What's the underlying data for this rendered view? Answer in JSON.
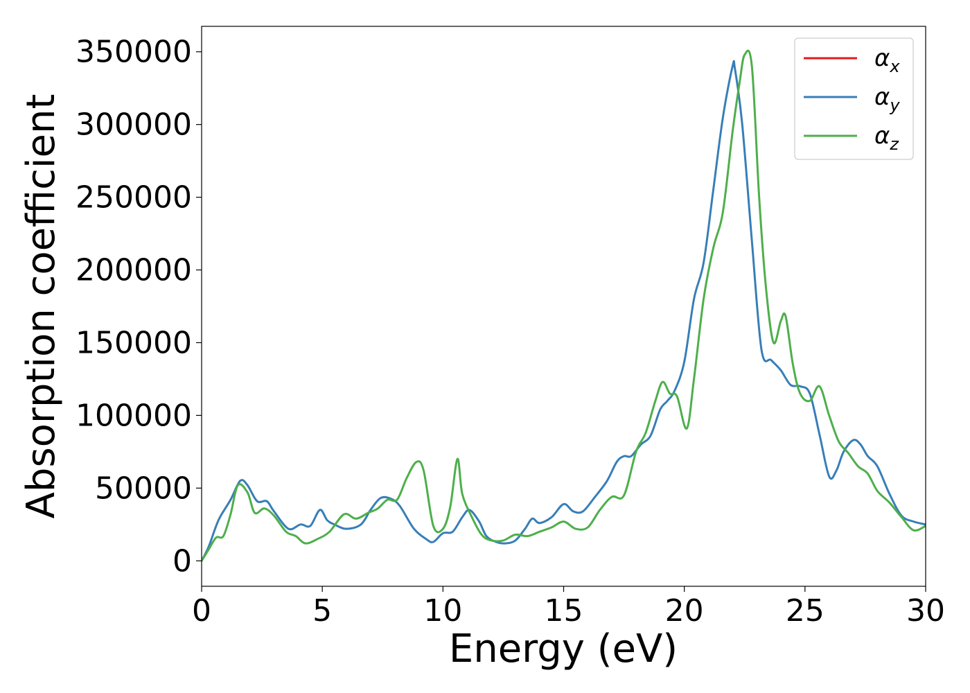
{
  "chart_data": {
    "type": "line",
    "xlabel": "Energy (eV)",
    "ylabel": "Absorption coefficient",
    "xlim": [
      0,
      30
    ],
    "ylim": [
      -17500,
      367500
    ],
    "xticks": [
      "0",
      "5",
      "10",
      "15",
      "20",
      "25",
      "30"
    ],
    "yticks": [
      "0",
      "50000",
      "100000",
      "150000",
      "200000",
      "250000",
      "300000",
      "350000"
    ],
    "grid": false,
    "legend": "top-right",
    "series": [
      {
        "name": "α",
        "sub": "x",
        "color": "#e41a1c",
        "x": [
          0,
          0.3,
          0.7,
          1.2,
          1.6,
          1.9,
          2.3,
          2.7,
          3.0,
          3.6,
          4.1,
          4.5,
          4.9,
          5.2,
          5.5,
          6.0,
          6.6,
          7.0,
          7.4,
          7.8,
          8.2,
          8.8,
          9.3,
          9.6,
          10.0,
          10.4,
          10.8,
          11.1,
          11.5,
          11.8,
          12.2,
          12.6,
          13.0,
          13.4,
          13.7,
          14.0,
          14.5,
          15.0,
          15.4,
          15.8,
          16.3,
          16.8,
          17.2,
          17.5,
          17.8,
          18.2,
          18.6,
          19.0,
          19.3,
          19.6,
          20.0,
          20.4,
          20.8,
          21.2,
          21.6,
          22.0,
          22.1,
          22.4,
          22.8,
          23.2,
          23.6,
          24.0,
          24.4,
          24.8,
          25.2,
          25.6,
          26.0,
          26.3,
          26.6,
          27.0,
          27.3,
          27.6,
          28.0,
          28.5,
          29.0,
          29.5,
          30.0
        ],
        "y": [
          0,
          10000,
          28000,
          42000,
          55000,
          52000,
          41000,
          41000,
          34000,
          22000,
          25000,
          24000,
          35000,
          28000,
          25000,
          22000,
          25000,
          35000,
          43000,
          43000,
          38000,
          22000,
          15000,
          13000,
          19000,
          20000,
          30000,
          35000,
          27000,
          17000,
          13000,
          12000,
          14000,
          22000,
          29000,
          26000,
          30000,
          39000,
          34000,
          34000,
          44000,
          55000,
          68000,
          72000,
          72000,
          80000,
          86000,
          104000,
          110000,
          117000,
          137000,
          180000,
          205000,
          255000,
          305000,
          340000,
          338000,
          300000,
          220000,
          145000,
          138000,
          131000,
          121000,
          120000,
          115000,
          87000,
          58000,
          62000,
          75000,
          83000,
          80000,
          72000,
          65000,
          46000,
          31000,
          27000,
          25000
        ],
        "visible": false
      },
      {
        "name": "α",
        "sub": "y",
        "color": "#377eb8",
        "x": [
          0,
          0.3,
          0.7,
          1.2,
          1.6,
          1.9,
          2.3,
          2.7,
          3.0,
          3.6,
          4.1,
          4.5,
          4.9,
          5.2,
          5.5,
          6.0,
          6.6,
          7.0,
          7.4,
          7.8,
          8.2,
          8.8,
          9.3,
          9.6,
          10.0,
          10.4,
          10.8,
          11.1,
          11.5,
          11.8,
          12.2,
          12.6,
          13.0,
          13.4,
          13.7,
          14.0,
          14.5,
          15.0,
          15.4,
          15.8,
          16.3,
          16.8,
          17.2,
          17.5,
          17.8,
          18.2,
          18.6,
          19.0,
          19.3,
          19.6,
          20.0,
          20.4,
          20.8,
          21.2,
          21.6,
          22.0,
          22.1,
          22.4,
          22.8,
          23.2,
          23.6,
          24.0,
          24.4,
          24.8,
          25.2,
          25.6,
          26.0,
          26.3,
          26.6,
          27.0,
          27.3,
          27.6,
          28.0,
          28.5,
          29.0,
          29.5,
          30.0
        ],
        "y": [
          0,
          10000,
          28000,
          42000,
          55000,
          52000,
          41000,
          41000,
          34000,
          22000,
          25000,
          24000,
          35000,
          28000,
          25000,
          22000,
          25000,
          35000,
          43000,
          43000,
          38000,
          22000,
          15000,
          13000,
          19000,
          20000,
          30000,
          35000,
          27000,
          17000,
          13000,
          12000,
          14000,
          22000,
          29000,
          26000,
          30000,
          39000,
          34000,
          34000,
          44000,
          55000,
          68000,
          72000,
          72000,
          80000,
          86000,
          104000,
          110000,
          117000,
          137000,
          180000,
          205000,
          255000,
          305000,
          340000,
          338000,
          300000,
          220000,
          145000,
          138000,
          131000,
          121000,
          120000,
          115000,
          87000,
          58000,
          62000,
          75000,
          83000,
          80000,
          72000,
          65000,
          46000,
          31000,
          27000,
          25000
        ]
      },
      {
        "name": "α",
        "sub": "z",
        "color": "#4daf4a",
        "x": [
          0,
          0.3,
          0.6,
          0.9,
          1.2,
          1.5,
          1.9,
          2.2,
          2.6,
          3.0,
          3.5,
          3.9,
          4.3,
          4.8,
          5.3,
          5.9,
          6.4,
          6.9,
          7.3,
          7.7,
          8.1,
          8.5,
          8.9,
          9.2,
          9.6,
          10.0,
          10.3,
          10.6,
          10.8,
          11.2,
          11.6,
          12.0,
          12.5,
          13.0,
          13.5,
          14.0,
          14.5,
          15.0,
          15.5,
          16.0,
          16.5,
          17.0,
          17.5,
          18.0,
          18.4,
          18.8,
          19.1,
          19.4,
          19.7,
          20.1,
          20.4,
          20.8,
          21.2,
          21.6,
          22.0,
          22.3,
          22.5,
          22.8,
          23.1,
          23.4,
          23.7,
          24.0,
          24.2,
          24.5,
          24.8,
          25.2,
          25.6,
          26.0,
          26.4,
          26.8,
          27.2,
          27.6,
          28.0,
          28.5,
          29.0,
          29.5,
          30.0
        ],
        "y": [
          0,
          8000,
          16000,
          17000,
          32000,
          52000,
          47000,
          33000,
          36000,
          31000,
          20000,
          17000,
          12000,
          15000,
          20000,
          32000,
          29000,
          33000,
          36000,
          42000,
          42000,
          57000,
          68000,
          62000,
          24000,
          22000,
          37000,
          70000,
          46000,
          30000,
          18000,
          14000,
          14000,
          18000,
          17000,
          20000,
          23000,
          27000,
          22000,
          23000,
          35000,
          44000,
          45000,
          75000,
          88000,
          110000,
          123000,
          115000,
          113000,
          91000,
          125000,
          180000,
          215000,
          240000,
          295000,
          330000,
          348000,
          340000,
          250000,
          185000,
          150000,
          165000,
          168000,
          135000,
          115000,
          110000,
          120000,
          100000,
          82000,
          74000,
          65000,
          60000,
          48000,
          40000,
          30000,
          21000,
          24000
        ]
      }
    ]
  }
}
